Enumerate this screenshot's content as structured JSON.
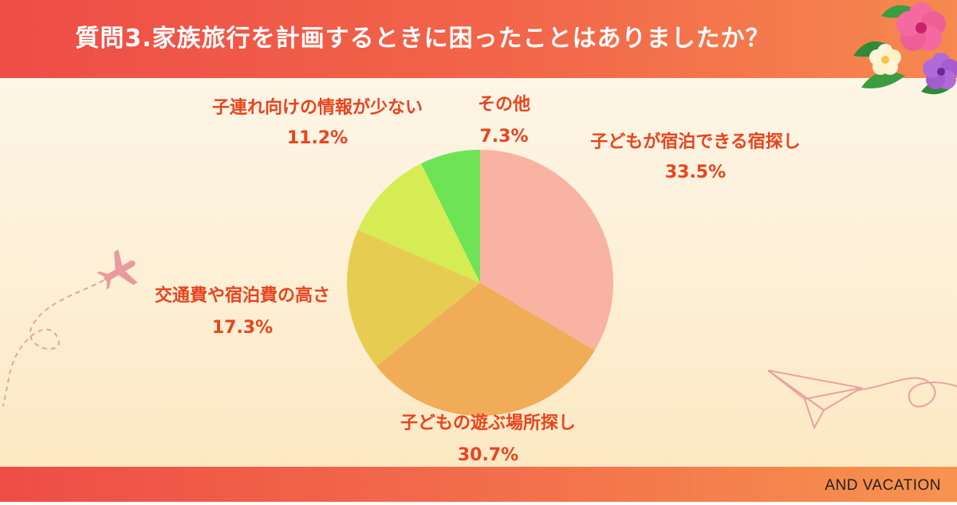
{
  "title": "質問3.家族旅行を計画するときに困ったことはありましたか？",
  "brand": "AND VACATION",
  "chart_data": {
    "type": "pie",
    "title": "",
    "slices": [
      {
        "label": "子どもが宿泊できる宿探し",
        "value": 33.5,
        "value_label": "33.5%",
        "color": "#f8b3a2"
      },
      {
        "label": "子どもの遊ぶ場所探し",
        "value": 30.7,
        "value_label": "30.7%",
        "color": "#f0ac56"
      },
      {
        "label": "交通費や宿泊費の高さ",
        "value": 17.3,
        "value_label": "17.3%",
        "color": "#e6cd52"
      },
      {
        "label": "子連れ向けの情報が少ない",
        "value": 11.2,
        "value_label": "11.2%",
        "color": "#d5ec55"
      },
      {
        "label": "その他",
        "value": 7.3,
        "value_label": "7.3%",
        "color": "#6fe356"
      }
    ],
    "start": "12 o'clock",
    "direction": "clockwise",
    "legend": "none"
  }
}
